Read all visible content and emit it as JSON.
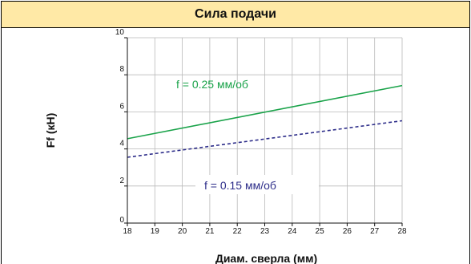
{
  "header": {
    "title": "Сила подачи"
  },
  "chart_data": {
    "type": "line",
    "title": "Сила подачи",
    "xlabel": "Диам. сверла (мм)",
    "ylabel": "Ff (кН)",
    "xlim": [
      18,
      28
    ],
    "ylim": [
      0,
      10
    ],
    "x_ticks": [
      18,
      19,
      20,
      21,
      22,
      23,
      24,
      25,
      26,
      27,
      28
    ],
    "y_ticks": [
      0,
      2,
      4,
      6,
      8,
      10
    ],
    "grid": true,
    "series": [
      {
        "name": "f = 0.25 мм/об",
        "style": "solid",
        "color": "#1aa34a",
        "x": [
          18,
          28
        ],
        "y": [
          4.55,
          7.42
        ]
      },
      {
        "name": "f = 0.15 мм/об",
        "style": "dashed",
        "color": "#2e2e8a",
        "x": [
          18,
          28
        ],
        "y": [
          3.55,
          5.52
        ]
      }
    ]
  }
}
